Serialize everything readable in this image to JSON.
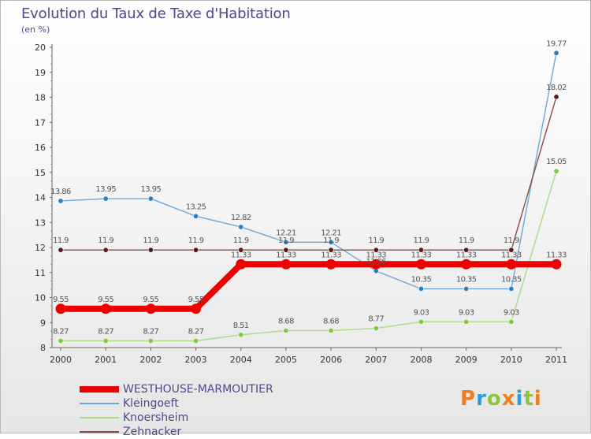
{
  "header": {
    "title": "Evolution du Taux de Taxe d'Habitation",
    "unit": "(en %)"
  },
  "brand": {
    "letters": [
      "P",
      "r",
      "o",
      "x",
      "i",
      "t",
      "i"
    ],
    "colors": [
      "#ef7d22",
      "#2b9dd8",
      "#8cc63e",
      "#ef7d22",
      "#2b9dd8",
      "#8cc63e",
      "#ef7d22"
    ]
  },
  "chart_data": {
    "type": "line",
    "title": "Evolution du Taux de Taxe d'Habitation",
    "ylabel": "(en %)",
    "xlabel": "",
    "ylim": [
      8,
      20
    ],
    "yticks": [
      8,
      9,
      10,
      11,
      12,
      13,
      14,
      15,
      16,
      17,
      18,
      19,
      20
    ],
    "grid": false,
    "legend_position": "bottom-left",
    "categories": [
      "2000",
      "2001",
      "2002",
      "2003",
      "2004",
      "2005",
      "2006",
      "2007",
      "2008",
      "2009",
      "2010",
      "2011"
    ],
    "series": [
      {
        "name": "WESTHOUSE-MARMOUTIER",
        "color": "#ee0000",
        "values": [
          9.55,
          9.55,
          9.55,
          9.55,
          11.33,
          11.33,
          11.33,
          11.33,
          11.33,
          11.33,
          11.33,
          11.33
        ]
      },
      {
        "name": "Kleingoeft",
        "color": "#2f7fc0",
        "line_color": "#6ea6d8",
        "values": [
          13.86,
          13.95,
          13.95,
          13.25,
          12.82,
          12.21,
          12.21,
          11.06,
          10.35,
          10.35,
          10.35,
          19.77
        ]
      },
      {
        "name": "Knoersheim",
        "color": "#7ac943",
        "line_color": "#a6dc84",
        "values": [
          8.27,
          8.27,
          8.27,
          8.27,
          8.51,
          8.68,
          8.68,
          8.77,
          9.03,
          9.03,
          9.03,
          15.05
        ]
      },
      {
        "name": "Zehnacker",
        "color": "#5a1a1a",
        "line_color": "#8a4a4a",
        "values": [
          11.9,
          11.9,
          11.9,
          11.9,
          11.9,
          11.9,
          11.9,
          11.9,
          11.9,
          11.9,
          11.9,
          18.02
        ]
      }
    ]
  }
}
